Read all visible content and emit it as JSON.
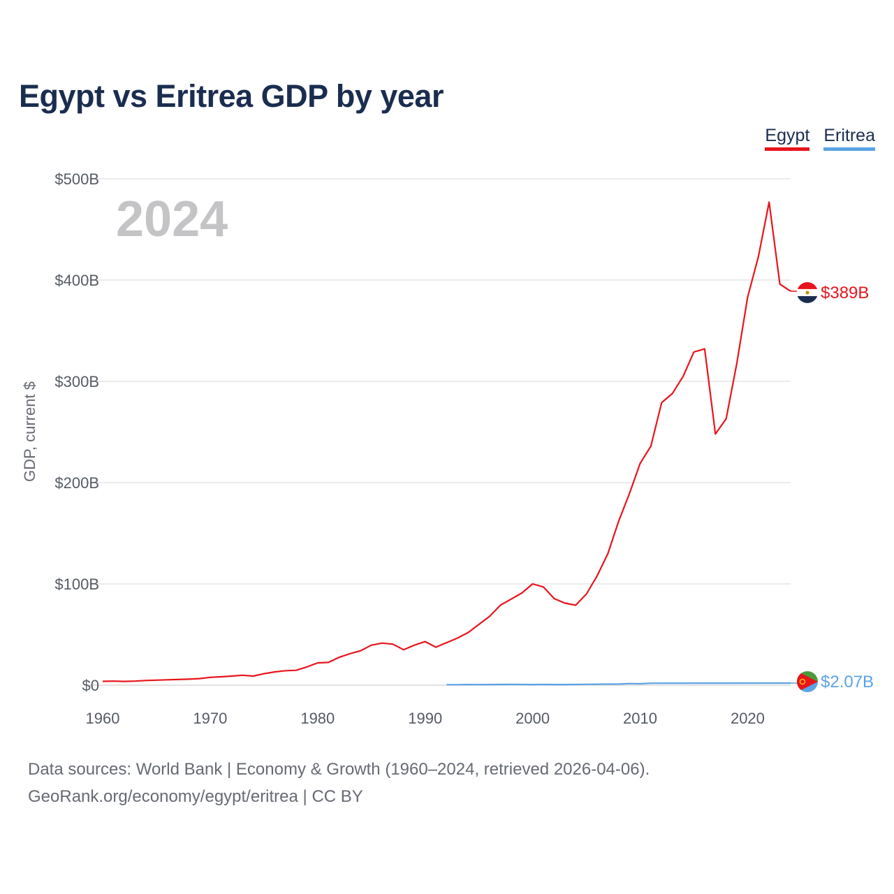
{
  "title": "Egypt vs Eritrea GDP by year",
  "current_year": "2024",
  "legend": [
    {
      "name": "Egypt",
      "color": "#e8141c"
    },
    {
      "name": "Eritrea",
      "color": "#5ba3e6"
    }
  ],
  "chart_data": {
    "type": "line",
    "title": "Egypt vs Eritrea GDP by year",
    "xlabel": "",
    "ylabel": "GDP, current $",
    "xlim": [
      1960,
      2024
    ],
    "ylim": [
      0,
      500
    ],
    "y_unit": "billions USD",
    "y_ticks": [
      0,
      100,
      200,
      300,
      400,
      500
    ],
    "y_tick_labels": [
      "$0",
      "$100B",
      "$200B",
      "$300B",
      "$400B",
      "$500B"
    ],
    "x_ticks": [
      1960,
      1970,
      1980,
      1990,
      2000,
      2010,
      2020
    ],
    "x_tick_labels": [
      "1960",
      "1970",
      "1980",
      "1990",
      "2000",
      "2010",
      "2020"
    ],
    "grid": true,
    "series": [
      {
        "name": "Egypt",
        "color": "#e8141c",
        "end_label": "$389B",
        "x": [
          1960,
          1961,
          1962,
          1963,
          1964,
          1965,
          1966,
          1967,
          1968,
          1969,
          1970,
          1971,
          1972,
          1973,
          1974,
          1975,
          1976,
          1977,
          1978,
          1979,
          1980,
          1981,
          1982,
          1983,
          1984,
          1985,
          1986,
          1987,
          1988,
          1989,
          1990,
          1991,
          1992,
          1993,
          1994,
          1995,
          1996,
          1997,
          1998,
          1999,
          2000,
          2001,
          2002,
          2003,
          2004,
          2005,
          2006,
          2007,
          2008,
          2009,
          2010,
          2011,
          2012,
          2013,
          2014,
          2015,
          2016,
          2017,
          2018,
          2019,
          2020,
          2021,
          2022,
          2023,
          2024
        ],
        "values": [
          3.8,
          4.0,
          3.7,
          4.0,
          4.6,
          5.0,
          5.3,
          5.6,
          5.9,
          6.5,
          7.7,
          8.3,
          9.0,
          9.8,
          9.0,
          11.3,
          13.1,
          14.3,
          14.7,
          18.0,
          22.0,
          22.5,
          27.5,
          31.0,
          34.0,
          39.5,
          41.5,
          40.5,
          35.0,
          39.5,
          43.0,
          37.5,
          42.0,
          46.5,
          52.0,
          60.0,
          68.0,
          79.0,
          85.0,
          91.0,
          100.0,
          97.0,
          85.5,
          81.0,
          79.0,
          90.0,
          108.0,
          130.0,
          162.0,
          189.0,
          219.0,
          236.0,
          279.0,
          288.0,
          305.0,
          329.0,
          332.0,
          248.0,
          263.0,
          318.0,
          383.0,
          423.0,
          477.0,
          396.0,
          389.0
        ]
      },
      {
        "name": "Eritrea",
        "color": "#5ba3e6",
        "end_label": "$2.07B",
        "x": [
          1992,
          1993,
          1994,
          1995,
          1996,
          1997,
          1998,
          1999,
          2000,
          2001,
          2002,
          2003,
          2004,
          2005,
          2006,
          2007,
          2008,
          2009,
          2010,
          2011,
          2024
        ],
        "values": [
          0.48,
          0.48,
          0.6,
          0.58,
          0.63,
          0.7,
          0.77,
          0.68,
          0.63,
          0.69,
          0.63,
          0.6,
          0.7,
          0.8,
          0.95,
          1.0,
          1.1,
          1.6,
          1.4,
          1.9,
          2.07
        ]
      }
    ],
    "annotations": [
      "2024"
    ]
  },
  "source": {
    "line1": "Data sources: World Bank | Economy & Growth (1960–2024, retrieved 2026-04-06).",
    "line2": "GeoRank.org/economy/egypt/eritrea | CC BY"
  }
}
